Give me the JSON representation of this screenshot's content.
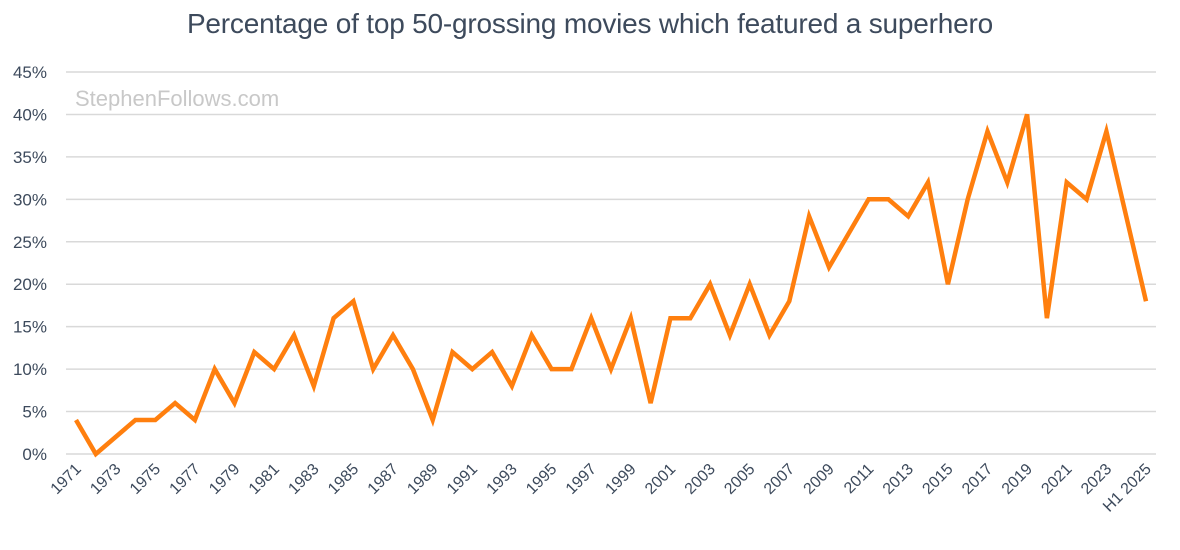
{
  "chart_data": {
    "type": "line",
    "title": "Percentage of top 50-grossing movies which featured a superhero",
    "watermark": "StephenFollows.com",
    "xlabel": "",
    "ylabel": "",
    "ylim": [
      0,
      45
    ],
    "y_ticks": [
      "0%",
      "5%",
      "10%",
      "15%",
      "20%",
      "25%",
      "30%",
      "35%",
      "40%",
      "45%"
    ],
    "y_tick_values": [
      0,
      5,
      10,
      15,
      20,
      25,
      30,
      35,
      40,
      45
    ],
    "grid": "horizontal",
    "categories": [
      "1971",
      "1972",
      "1973",
      "1974",
      "1975",
      "1976",
      "1977",
      "1978",
      "1979",
      "1980",
      "1981",
      "1982",
      "1983",
      "1984",
      "1985",
      "1986",
      "1987",
      "1988",
      "1989",
      "1990",
      "1991",
      "1992",
      "1993",
      "1994",
      "1995",
      "1996",
      "1997",
      "1998",
      "1999",
      "2000",
      "2001",
      "2002",
      "2003",
      "2004",
      "2005",
      "2006",
      "2007",
      "2008",
      "2009",
      "2010",
      "2011",
      "2012",
      "2013",
      "2014",
      "2015",
      "2016",
      "2017",
      "2018",
      "2019",
      "2020",
      "2021",
      "2022",
      "2023",
      "2024",
      "H1 2025"
    ],
    "x_tick_labels": [
      "1971",
      "1973",
      "1975",
      "1977",
      "1979",
      "1981",
      "1983",
      "1985",
      "1987",
      "1989",
      "1991",
      "1993",
      "1995",
      "1997",
      "1999",
      "2001",
      "2003",
      "2005",
      "2007",
      "2009",
      "2011",
      "2013",
      "2015",
      "2017",
      "2019",
      "2021",
      "2023",
      "H1 2025"
    ],
    "series": [
      {
        "color": "#ff7f0e",
        "values": [
          4,
          0,
          2,
          4,
          4,
          6,
          4,
          10,
          6,
          12,
          10,
          14,
          8,
          16,
          18,
          10,
          14,
          10,
          4,
          12,
          10,
          12,
          8,
          14,
          10,
          10,
          16,
          10,
          16,
          6,
          16,
          16,
          20,
          14,
          20,
          14,
          18,
          28,
          22,
          26,
          30,
          30,
          28,
          32,
          20,
          30,
          38,
          32,
          40,
          16,
          32,
          30,
          38,
          28,
          18
        ]
      }
    ],
    "colors": {
      "line": "#ff7f0e",
      "grid": "#d9d9d9",
      "text": "#3d4a5c",
      "watermark": "#c8c8c8"
    }
  }
}
